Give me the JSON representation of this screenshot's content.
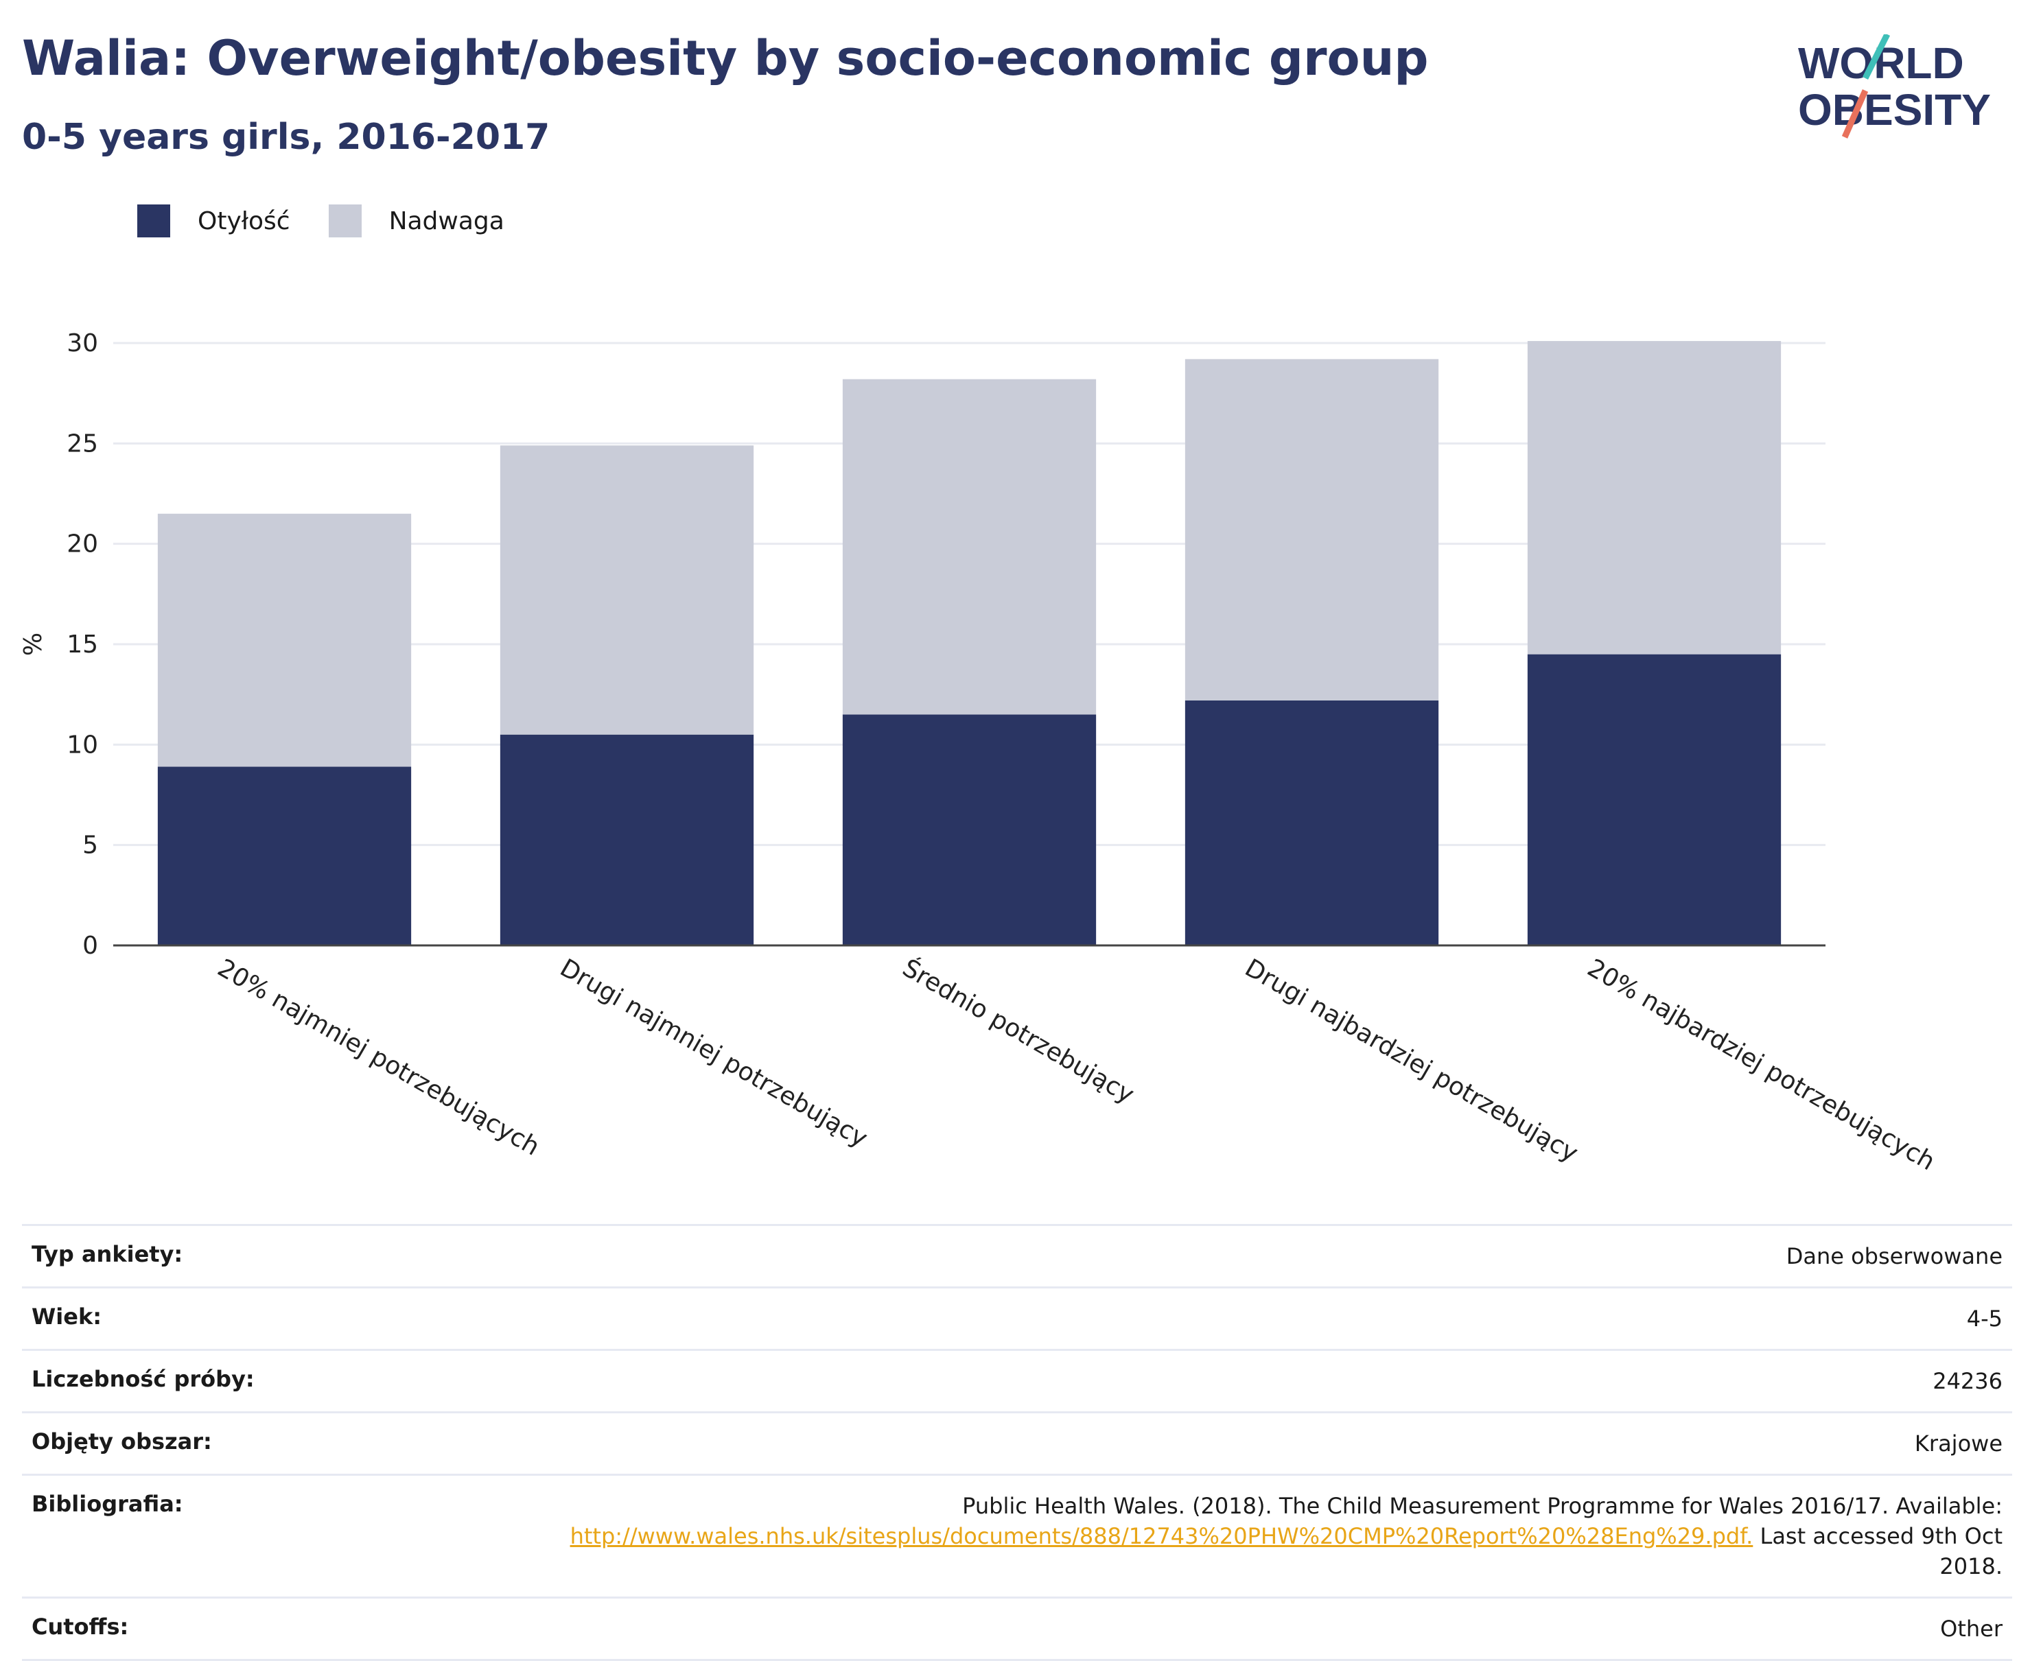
{
  "header": {
    "title": "Walia: Overweight/obesity by socio-economic group",
    "subtitle": "0-5 years girls, 2016-2017",
    "logo_line1": "WORLD",
    "logo_line2": "OBESITY"
  },
  "colors": {
    "obesity": "#2a3563",
    "overweight": "#c9ccd8",
    "accent_link": "#e8a517",
    "logo_teal": "#3fbfb8",
    "logo_coral": "#e8715c"
  },
  "chart_data": {
    "type": "bar",
    "stacked": true,
    "categories": [
      "20% najmniej potrzebujących",
      "Drugi najmniej potrzebujący",
      "Średnio potrzebujący",
      "Drugi najbardziej potrzebujący",
      "20% najbardziej potrzebujących"
    ],
    "series": [
      {
        "name": "Otyłość",
        "values": [
          8.9,
          10.5,
          11.5,
          12.2,
          14.5
        ]
      },
      {
        "name": "Nadwaga",
        "values": [
          12.6,
          14.4,
          16.7,
          17.0,
          15.6
        ]
      }
    ],
    "ylabel": "%",
    "ylim": [
      0,
      30
    ],
    "yticks": [
      0,
      5,
      10,
      15,
      20,
      25,
      30
    ],
    "grid": true,
    "legend_position": "top-left"
  },
  "meta": {
    "rows": [
      {
        "key": "Typ ankiety:",
        "value": "Dane obserwowane"
      },
      {
        "key": "Wiek:",
        "value": "4-5"
      },
      {
        "key": "Liczebność próby:",
        "value": "24236"
      },
      {
        "key": "Objęty obszar:",
        "value": "Krajowe"
      }
    ],
    "bibliography": {
      "key": "Bibliografia:",
      "line1": "Public Health Wales. (2018). The Child Measurement Programme for Wales 2016/17. Available:",
      "link": "http://www.wales.nhs.uk/sitesplus/documents/888/12743%20PHW%20CMP%20Report%20%28Eng%29.pdf.",
      "after_link": " Last accessed 9th Oct",
      "line3": "2018."
    },
    "cutoffs": {
      "key": "Cutoffs:",
      "value": "Other"
    }
  }
}
